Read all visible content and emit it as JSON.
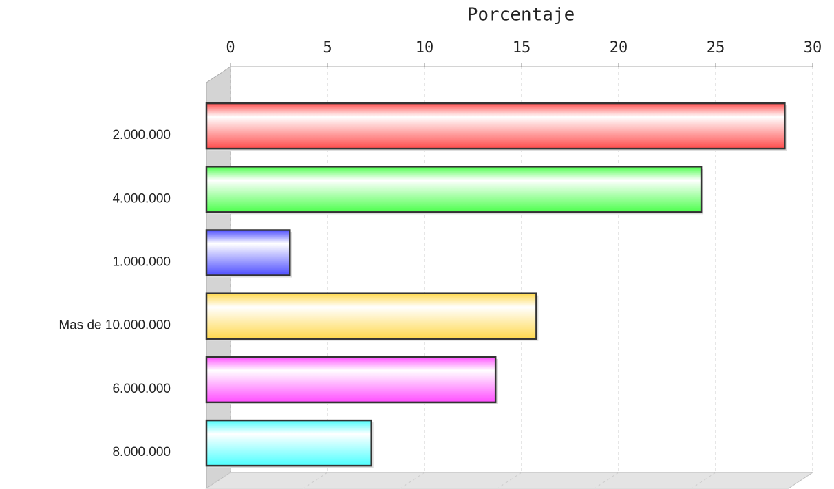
{
  "chart_data": {
    "type": "bar",
    "orientation": "horizontal",
    "x_label": "Porcentaje",
    "categories": [
      "2.000.000",
      "4.000.000",
      "1.000.000",
      "Mas de 10.000.000",
      "6.000.000",
      "8.000.000"
    ],
    "values": [
      29.8,
      25.5,
      4.3,
      17.0,
      14.9,
      8.5
    ],
    "colors": [
      "#ff4d4d",
      "#4dff4d",
      "#4d4dff",
      "#ffd84d",
      "#ff4dff",
      "#4dffff"
    ],
    "xlim": [
      0,
      30
    ],
    "xticks": [
      0,
      5,
      10,
      15,
      20,
      25,
      30
    ],
    "grid": true
  }
}
